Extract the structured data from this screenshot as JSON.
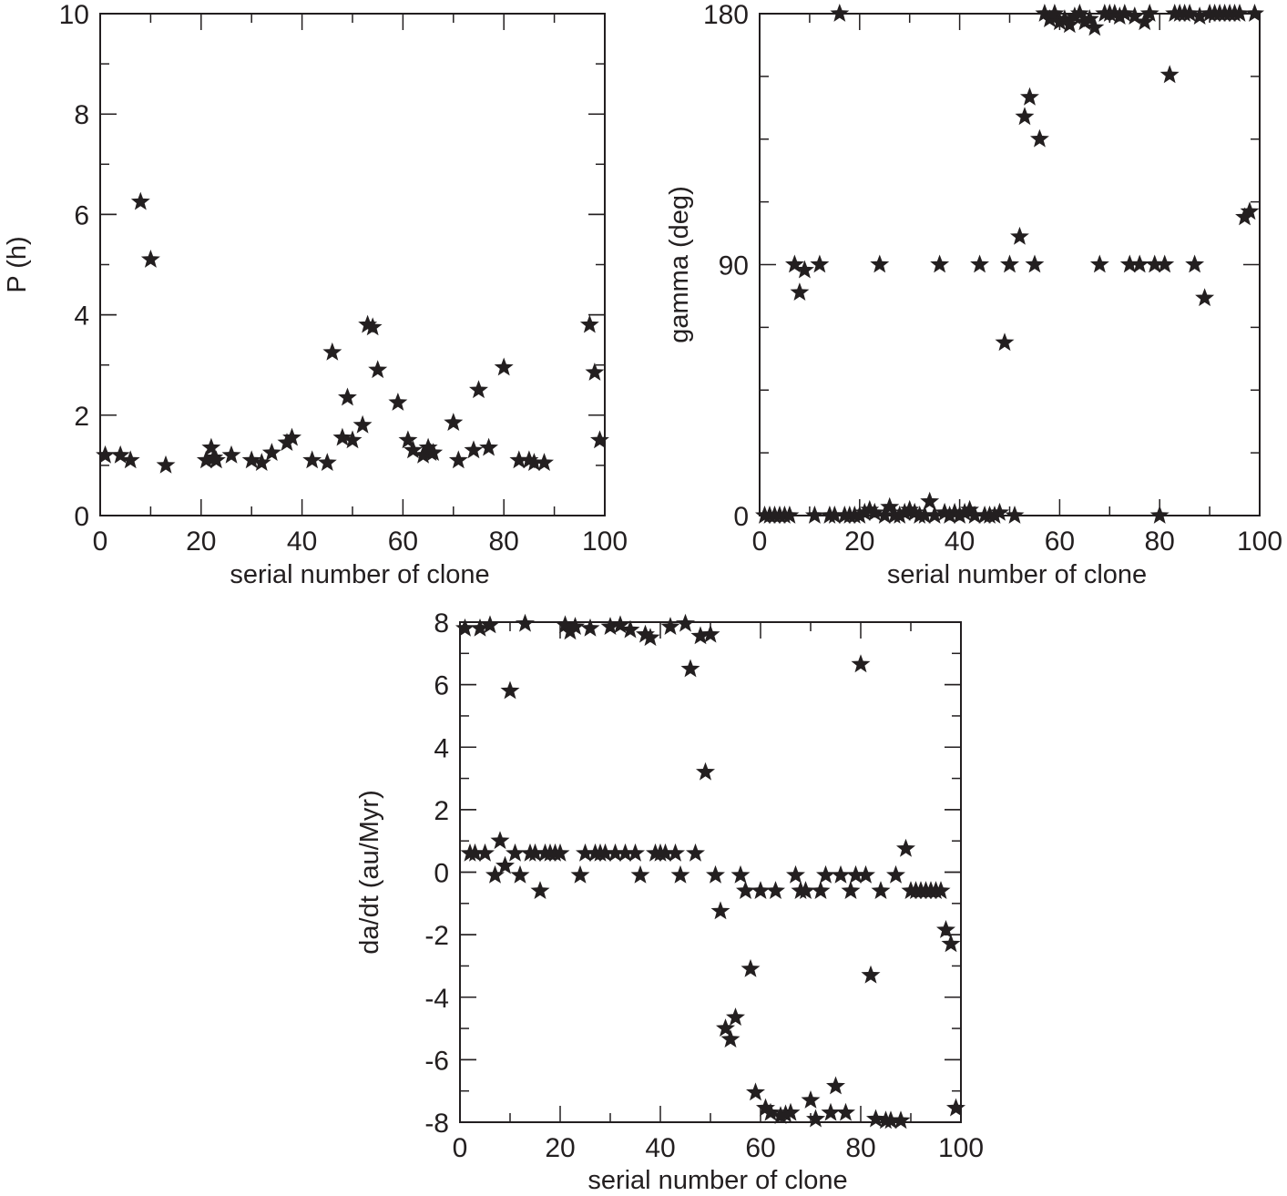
{
  "chart_data": [
    {
      "type": "scatter",
      "id": "period",
      "title": "",
      "xlabel": "serial number of clone",
      "ylabel": "P (h)",
      "xlim": [
        0,
        100
      ],
      "ylim": [
        0,
        10
      ],
      "xticks": [
        0,
        20,
        40,
        60,
        80,
        100
      ],
      "yticks": [
        0,
        2,
        4,
        6,
        8,
        10
      ],
      "marker": "star",
      "grid": false,
      "x": [
        1,
        4,
        6,
        8,
        10,
        13,
        21,
        22,
        22.5,
        23,
        26,
        30,
        32,
        34,
        37,
        38,
        42,
        45,
        46,
        48,
        49,
        50,
        52,
        53,
        54,
        55,
        59,
        61,
        62,
        64,
        65,
        65.5,
        66,
        70,
        71,
        74,
        75,
        77,
        80,
        83,
        85,
        86,
        88,
        97,
        98,
        99
      ],
      "y": [
        1.2,
        1.2,
        1.1,
        6.25,
        5.1,
        1.0,
        1.1,
        1.35,
        1.15,
        1.1,
        1.2,
        1.1,
        1.05,
        1.25,
        1.45,
        1.55,
        1.1,
        1.05,
        3.25,
        1.55,
        2.35,
        1.5,
        1.8,
        3.8,
        3.75,
        2.9,
        2.25,
        1.5,
        1.3,
        1.2,
        1.35,
        1.25,
        1.25,
        1.85,
        1.1,
        1.3,
        2.5,
        1.35,
        2.95,
        1.1,
        1.1,
        1.05,
        1.05,
        3.8,
        2.85,
        1.5
      ]
    },
    {
      "type": "scatter",
      "id": "gamma",
      "title": "",
      "xlabel": "serial number of clone",
      "ylabel": "gamma (deg)",
      "xlim": [
        0,
        100
      ],
      "ylim": [
        0,
        180
      ],
      "xticks": [
        0,
        20,
        40,
        60,
        80,
        100
      ],
      "yticks": [
        0,
        90,
        180
      ],
      "minor_yticks": [
        22.5,
        45,
        67.5,
        112.5,
        135,
        157.5
      ],
      "marker": "star",
      "grid": false,
      "x": [
        1,
        2,
        3,
        4,
        5,
        6,
        7,
        8,
        9,
        11,
        12,
        14,
        15,
        16,
        17,
        18,
        19,
        20,
        21,
        22,
        23,
        24,
        25,
        26,
        27,
        28,
        29,
        30,
        31,
        32,
        33,
        34,
        35,
        36,
        37,
        38,
        39,
        40,
        41,
        42,
        43,
        44,
        45,
        46,
        47,
        48,
        49,
        50,
        51,
        52,
        53,
        54,
        55,
        56,
        57,
        58,
        59,
        60,
        61,
        62,
        63,
        64,
        65,
        66,
        67,
        68,
        69,
        70,
        71,
        72,
        73,
        74,
        75,
        76,
        77,
        78,
        79,
        80,
        81,
        82,
        83,
        84,
        85,
        86,
        87,
        88,
        89,
        90,
        91,
        92,
        93,
        94,
        95,
        96,
        97,
        98,
        99
      ],
      "y": [
        0,
        0,
        0,
        0,
        0,
        0,
        90,
        80,
        88,
        0,
        90,
        0,
        0,
        180,
        0,
        0,
        0,
        0,
        1,
        2,
        1,
        90,
        0,
        3,
        0,
        0,
        1,
        2,
        1,
        0,
        0,
        5,
        0,
        90,
        1,
        0,
        1,
        0,
        1,
        2,
        0,
        90,
        0,
        0,
        0,
        1,
        62,
        90,
        0,
        100,
        143,
        150,
        90,
        135,
        180,
        178,
        180,
        177,
        178,
        176,
        179,
        180,
        177,
        178,
        175,
        90,
        180,
        180,
        180,
        179,
        180,
        90,
        179,
        90,
        177,
        180,
        90,
        0,
        90,
        158,
        180,
        180,
        180,
        180,
        90,
        179,
        78,
        180,
        180,
        180,
        180,
        180,
        180,
        180,
        107,
        109,
        180
      ]
    },
    {
      "type": "scatter",
      "id": "dadt",
      "title": "",
      "xlabel": "serial number of clone",
      "ylabel": "da/dt (au/Myr)",
      "xlim": [
        0,
        100
      ],
      "ylim": [
        -8,
        8
      ],
      "xticks": [
        0,
        20,
        40,
        60,
        80,
        100
      ],
      "yticks": [
        -8,
        -6,
        -4,
        -2,
        0,
        2,
        4,
        6,
        8
      ],
      "marker": "star",
      "grid": false,
      "x": [
        1,
        2,
        3,
        4,
        5,
        6,
        7,
        8,
        9,
        10,
        11,
        12,
        13,
        14,
        15,
        16,
        17,
        18,
        19,
        20,
        21,
        22,
        23,
        24,
        25,
        26,
        27,
        28,
        29,
        30,
        31,
        32,
        33,
        34,
        35,
        36,
        37,
        38,
        39,
        40,
        41,
        42,
        43,
        44,
        45,
        46,
        47,
        48,
        49,
        50,
        51,
        52,
        53,
        54,
        55,
        56,
        57,
        58,
        59,
        60,
        61,
        62,
        63,
        64,
        65,
        66,
        67,
        68,
        69,
        70,
        71,
        72,
        73,
        74,
        75,
        76,
        77,
        78,
        79,
        80,
        81,
        82,
        83,
        84,
        85,
        86,
        87,
        88,
        89,
        90,
        91,
        92,
        93,
        94,
        95,
        96,
        97,
        98,
        99
      ],
      "y": [
        7.8,
        0.6,
        0.6,
        7.8,
        0.6,
        7.9,
        -0.1,
        1.0,
        0.2,
        5.8,
        0.6,
        -0.1,
        7.95,
        0.6,
        0.6,
        -0.6,
        0.6,
        0.6,
        0.6,
        0.6,
        7.9,
        7.7,
        7.85,
        -0.1,
        0.6,
        7.8,
        0.6,
        0.6,
        0.6,
        7.85,
        0.6,
        7.9,
        0.6,
        7.75,
        0.6,
        -0.1,
        7.6,
        7.5,
        0.6,
        0.6,
        0.6,
        7.85,
        0.6,
        -0.1,
        7.95,
        6.5,
        0.6,
        7.55,
        3.2,
        7.6,
        -0.1,
        -1.25,
        -5.0,
        -5.35,
        -4.65,
        -0.1,
        -0.6,
        -3.1,
        -7.05,
        -0.6,
        -7.55,
        -7.7,
        -0.6,
        -7.8,
        -7.75,
        -7.7,
        -0.1,
        -0.6,
        -0.6,
        -7.3,
        -7.9,
        -0.6,
        -0.1,
        -7.7,
        -6.85,
        -0.1,
        -7.7,
        -0.6,
        -0.1,
        6.65,
        -0.1,
        -3.3,
        -7.9,
        -0.6,
        -7.95,
        -7.95,
        -0.1,
        -7.95,
        0.75,
        -0.6,
        -0.6,
        -0.6,
        -0.6,
        -0.6,
        -0.6,
        -0.6,
        -1.85,
        -2.3,
        -7.55
      ]
    }
  ],
  "panels": [
    {
      "xlabel": "serial number of clone",
      "ylabel": "P (h)"
    },
    {
      "xlabel": "serial number of clone",
      "ylabel": "gamma (deg)"
    },
    {
      "xlabel": "serial number of clone",
      "ylabel": "da/dt (au/Myr)"
    }
  ]
}
